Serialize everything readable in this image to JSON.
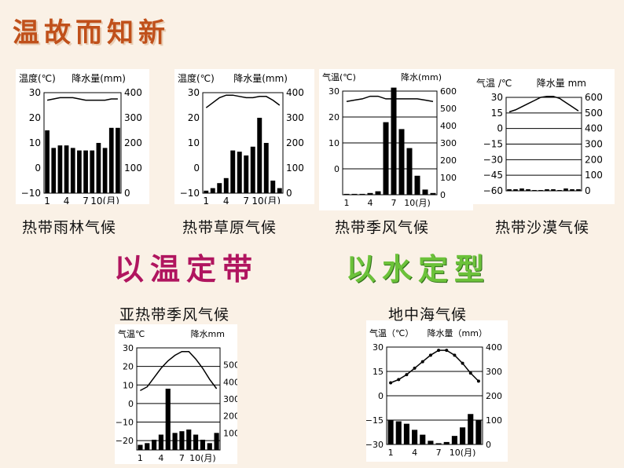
{
  "title": "温故而知新",
  "slogans": {
    "temp": "以温定带",
    "water": "以水定型"
  },
  "colors": {
    "title": "#c0501a",
    "temp_slogan": "#b0155f",
    "water_slogan": "#6cc23a"
  },
  "chart_data": [
    {
      "type": "bar+line",
      "caption": "热带雨林气候",
      "temp_title": "温度(℃)",
      "precip_title": "降水量(mm)",
      "x": [
        "1",
        "4",
        "7",
        "10(月)"
      ],
      "temp_ticks": [
        "30",
        "20",
        "10",
        "0",
        "−10"
      ],
      "precip_ticks": [
        "400",
        "300",
        "200",
        "100",
        "0"
      ],
      "temp_ylim": [
        -10,
        30
      ],
      "precip_ylim": [
        0,
        400
      ],
      "temperature": [
        27,
        27.5,
        28,
        28,
        28,
        27.5,
        27,
        27,
        27,
        27,
        27.5,
        27.5
      ],
      "precipitation": [
        250,
        180,
        190,
        190,
        180,
        170,
        170,
        170,
        200,
        180,
        260,
        260
      ]
    },
    {
      "type": "bar+line",
      "caption": "热带草原气候",
      "temp_title": "温度(℃)",
      "precip_title": "降水量(mm)",
      "x": [
        "1",
        "4",
        "7",
        "10(月)"
      ],
      "temp_ticks": [
        "30",
        "20",
        "10",
        "0",
        "−10"
      ],
      "precip_ticks": [
        "400",
        "300",
        "200",
        "100",
        "0"
      ],
      "temp_ylim": [
        -10,
        30
      ],
      "precip_ylim": [
        0,
        400
      ],
      "temperature": [
        24,
        26,
        28,
        29,
        29,
        28.5,
        28,
        28,
        28.5,
        28.5,
        27,
        25
      ],
      "precipitation": [
        10,
        20,
        40,
        60,
        170,
        165,
        150,
        185,
        300,
        200,
        50,
        20
      ]
    },
    {
      "type": "bar+line",
      "caption": "热带季风气候",
      "temp_title": "气温(℃)",
      "precip_title": "降水(mm)",
      "x": [
        "1",
        "4",
        "7",
        "10(月)"
      ],
      "temp_ticks": [
        "30",
        "20",
        "10",
        "0"
      ],
      "precip_ticks": [
        "600",
        "500",
        "400",
        "300",
        "200",
        "100",
        "0"
      ],
      "temp_ylim": [
        -10,
        30
      ],
      "precip_ylim": [
        0,
        600
      ],
      "temperature": [
        26,
        26.5,
        27,
        28,
        28,
        27,
        27,
        27,
        27,
        27,
        26.5,
        26
      ],
      "precipitation": [
        5,
        5,
        5,
        10,
        20,
        420,
        620,
        380,
        270,
        110,
        30,
        10
      ]
    },
    {
      "type": "bar+line",
      "caption": "热带沙漠气候",
      "temp_title": "气温 /℃",
      "precip_title": "降水量 mm",
      "x": [],
      "temp_ticks": [
        "30",
        "15",
        "0",
        "−15",
        "−30",
        "−45",
        "−60"
      ],
      "precip_ticks": [
        "600",
        "500",
        "400",
        "300",
        "200",
        "100",
        "0"
      ],
      "temp_ylim": [
        -60,
        30
      ],
      "precip_ylim": [
        0,
        600
      ],
      "temperature": [
        16,
        18,
        21,
        24,
        27,
        30,
        31,
        31,
        29,
        25,
        21,
        17
      ],
      "precipitation": [
        10,
        10,
        15,
        10,
        5,
        5,
        10,
        10,
        5,
        15,
        10,
        10
      ]
    },
    {
      "type": "bar+line",
      "caption": "亚热带季风气候",
      "temp_title": "气温℃",
      "precip_title": "降水mm",
      "x": [
        "1",
        "4",
        "7",
        "10(月)"
      ],
      "temp_ticks": [
        "30",
        "20",
        "10",
        "0",
        "−10",
        "−20"
      ],
      "precip_ticks": [
        "500",
        "400",
        "300",
        "200",
        "100"
      ],
      "temp_ylim": [
        -25,
        30
      ],
      "precip_ylim": [
        0,
        600
      ],
      "temperature": [
        7,
        9,
        14,
        19,
        23,
        26,
        28,
        28,
        24,
        19,
        13,
        8
      ],
      "precipitation": [
        30,
        40,
        60,
        90,
        360,
        100,
        110,
        120,
        90,
        60,
        40,
        100
      ]
    },
    {
      "type": "bar+line",
      "caption": "地中海气候",
      "temp_title": "气温（℃）",
      "precip_title": "降水量（mm）",
      "x": [
        "1",
        "4",
        "7",
        "10(月)"
      ],
      "temp_ticks": [
        "30",
        "15",
        "0",
        "−15",
        "−30"
      ],
      "precip_ticks": [
        "400",
        "300",
        "200",
        "100",
        "0"
      ],
      "temp_ylim": [
        -30,
        30
      ],
      "precip_ylim": [
        0,
        400
      ],
      "temperature": [
        8,
        10,
        13,
        17,
        21,
        25,
        28,
        28,
        25,
        20,
        14,
        9
      ],
      "precipitation": [
        100,
        95,
        85,
        60,
        40,
        15,
        5,
        10,
        35,
        70,
        125,
        100
      ]
    }
  ]
}
